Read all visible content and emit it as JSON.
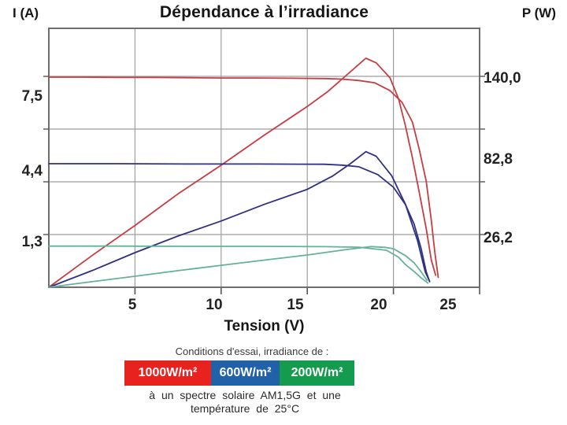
{
  "chart_data": {
    "type": "line",
    "title": "Dépendance à l’irradiance",
    "xlabel": "Tension (V)",
    "ylabel_left": "I (A)",
    "ylabel_right": "P (W)",
    "xlim": [
      0,
      25
    ],
    "x_ticks": [
      5,
      10,
      15,
      20,
      25
    ],
    "grid": true,
    "legend_position": "bottom",
    "power_gridlines_w": [
      35,
      70,
      105,
      140
    ],
    "left_axis_labels": [
      "7,5",
      "4,4",
      "1,3"
    ],
    "right_axis_labels": [
      "140,0",
      "82,8",
      "26,2"
    ],
    "series": [
      {
        "name": "courant 1000W/m²",
        "axis": "I",
        "color": "#c63d42",
        "points": [
          [
            0,
            7.5
          ],
          [
            2,
            7.5
          ],
          [
            4,
            7.49
          ],
          [
            6,
            7.49
          ],
          [
            8,
            7.48
          ],
          [
            10,
            7.47
          ],
          [
            12,
            7.47
          ],
          [
            14,
            7.46
          ],
          [
            16,
            7.45
          ],
          [
            17,
            7.43
          ],
          [
            18,
            7.38
          ],
          [
            18.9,
            7.3
          ],
          [
            19.8,
            7.02
          ],
          [
            20.5,
            6.6
          ],
          [
            21.1,
            5.9
          ],
          [
            21.5,
            4.92
          ],
          [
            21.9,
            3.79
          ],
          [
            22.2,
            2.39
          ],
          [
            22.4,
            1.26
          ],
          [
            22.6,
            0.35
          ]
        ]
      },
      {
        "name": "puissance 1000W/m²",
        "axis": "P",
        "color": "#c63d42",
        "points": [
          [
            0,
            0
          ],
          [
            2.5,
            21
          ],
          [
            5,
            41
          ],
          [
            7.5,
            62
          ],
          [
            10,
            81
          ],
          [
            12.5,
            101
          ],
          [
            15,
            120
          ],
          [
            16.2,
            130
          ],
          [
            17.2,
            140
          ],
          [
            18,
            148
          ],
          [
            18.4,
            152
          ],
          [
            19,
            149
          ],
          [
            19.8,
            139
          ],
          [
            20.3,
            125
          ],
          [
            20.7,
            107
          ],
          [
            21.1,
            86
          ],
          [
            21.5,
            63
          ],
          [
            21.9,
            39
          ],
          [
            22.2,
            18
          ],
          [
            22.45,
            8
          ]
        ]
      },
      {
        "name": "courant 600W/m²",
        "axis": "I",
        "color": "#2f3181",
        "points": [
          [
            0,
            4.41
          ],
          [
            4,
            4.41
          ],
          [
            8,
            4.4
          ],
          [
            12,
            4.4
          ],
          [
            16,
            4.39
          ],
          [
            17,
            4.36
          ],
          [
            18,
            4.3
          ],
          [
            19.1,
            4.02
          ],
          [
            20,
            3.57
          ],
          [
            20.7,
            2.95
          ],
          [
            21.2,
            2.25
          ],
          [
            21.6,
            1.4
          ],
          [
            21.9,
            0.56
          ],
          [
            22.1,
            0.2
          ]
        ]
      },
      {
        "name": "puissance 600W/m²",
        "axis": "P",
        "color": "#2f3181",
        "points": [
          [
            0,
            0
          ],
          [
            2.5,
            11
          ],
          [
            5,
            23
          ],
          [
            7.5,
            34
          ],
          [
            10,
            44
          ],
          [
            12.5,
            55
          ],
          [
            15,
            65
          ],
          [
            16.5,
            74
          ],
          [
            17.5,
            82
          ],
          [
            18.4,
            90
          ],
          [
            19,
            87
          ],
          [
            19.9,
            74
          ],
          [
            20.7,
            55
          ],
          [
            21.4,
            31
          ],
          [
            21.85,
            10
          ],
          [
            22.1,
            4
          ]
        ]
      },
      {
        "name": "courant 200W/m²",
        "axis": "I",
        "color": "#66b297",
        "points": [
          [
            0,
            1.47
          ],
          [
            4,
            1.47
          ],
          [
            8,
            1.46
          ],
          [
            12,
            1.46
          ],
          [
            16,
            1.45
          ],
          [
            18,
            1.43
          ],
          [
            19.6,
            1.32
          ],
          [
            20.3,
            1.07
          ],
          [
            20.7,
            0.81
          ],
          [
            21.2,
            0.56
          ],
          [
            21.6,
            0.34
          ],
          [
            22.0,
            0.15
          ]
        ]
      },
      {
        "name": "puissance 200W/m²",
        "axis": "P",
        "color": "#66b297",
        "points": [
          [
            0,
            0
          ],
          [
            2.5,
            3.7
          ],
          [
            5,
            7.3
          ],
          [
            7.5,
            11
          ],
          [
            10,
            14.6
          ],
          [
            12.5,
            18
          ],
          [
            15,
            21.4
          ],
          [
            17.3,
            25.1
          ],
          [
            18.7,
            27
          ],
          [
            19.5,
            26.5
          ],
          [
            20,
            25.6
          ],
          [
            20.7,
            21
          ],
          [
            21.2,
            16.2
          ],
          [
            21.6,
            10.4
          ],
          [
            21.95,
            4.5
          ]
        ]
      }
    ],
    "legend": [
      {
        "label": "1000W/m²",
        "color": "#e8221f"
      },
      {
        "label": "600W/m²",
        "color": "#2161a8"
      },
      {
        "label": "200W/m²",
        "color": "#149b4e"
      }
    ]
  },
  "captions": {
    "conditions": "Conditions d'essai, irradiance de :",
    "footnote_line1": "à un spectre solaire AM1,5G et une",
    "footnote_line2": "température de 25°C"
  }
}
